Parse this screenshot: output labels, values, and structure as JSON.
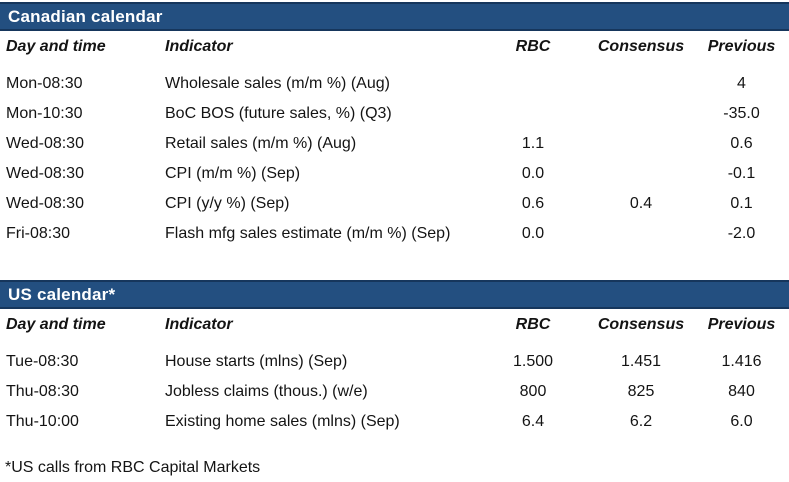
{
  "colors": {
    "bar_fill": "#234F80",
    "bar_border": "#16365C",
    "title_text": "#FFFFFF",
    "body_text": "#141414"
  },
  "tables": [
    {
      "title": "Canadian calendar",
      "columns": [
        "Day and time",
        "Indicator",
        "RBC",
        "Consensus",
        "Previous"
      ],
      "rows": [
        {
          "day": "Mon-08:30",
          "indicator": "Wholesale sales (m/m %) (Aug)",
          "rbc": "",
          "consensus": "",
          "previous": "4"
        },
        {
          "day": "Mon-10:30",
          "indicator": "BoC BOS (future sales, %) (Q3)",
          "rbc": "",
          "consensus": "",
          "previous": "-35.0"
        },
        {
          "day": "Wed-08:30",
          "indicator": "Retail sales (m/m %) (Aug)",
          "rbc": "1.1",
          "consensus": "",
          "previous": "0.6"
        },
        {
          "day": "Wed-08:30",
          "indicator": "CPI (m/m %) (Sep)",
          "rbc": "0.0",
          "consensus": "",
          "previous": "-0.1"
        },
        {
          "day": "Wed-08:30",
          "indicator": "CPI (y/y %) (Sep)",
          "rbc": "0.6",
          "consensus": "0.4",
          "previous": "0.1"
        },
        {
          "day": "Fri-08:30",
          "indicator": "Flash mfg sales estimate (m/m %) (Sep)",
          "rbc": "0.0",
          "consensus": "",
          "previous": "-2.0"
        }
      ]
    },
    {
      "title": "US calendar*",
      "columns": [
        "Day and time",
        "Indicator",
        "RBC",
        "Consensus",
        "Previous"
      ],
      "rows": [
        {
          "day": "Tue-08:30",
          "indicator": "House starts (mlns) (Sep)",
          "rbc": "1.500",
          "consensus": "1.451",
          "previous": "1.416"
        },
        {
          "day": "Thu-08:30",
          "indicator": "Jobless claims (thous.) (w/e)",
          "rbc": "800",
          "consensus": "825",
          "previous": "840"
        },
        {
          "day": "Thu-10:00",
          "indicator": "Existing home sales (mlns) (Sep)",
          "rbc": "6.4",
          "consensus": "6.2",
          "previous": "6.0"
        }
      ]
    }
  ],
  "footnote": "*US calls from RBC Capital Markets"
}
